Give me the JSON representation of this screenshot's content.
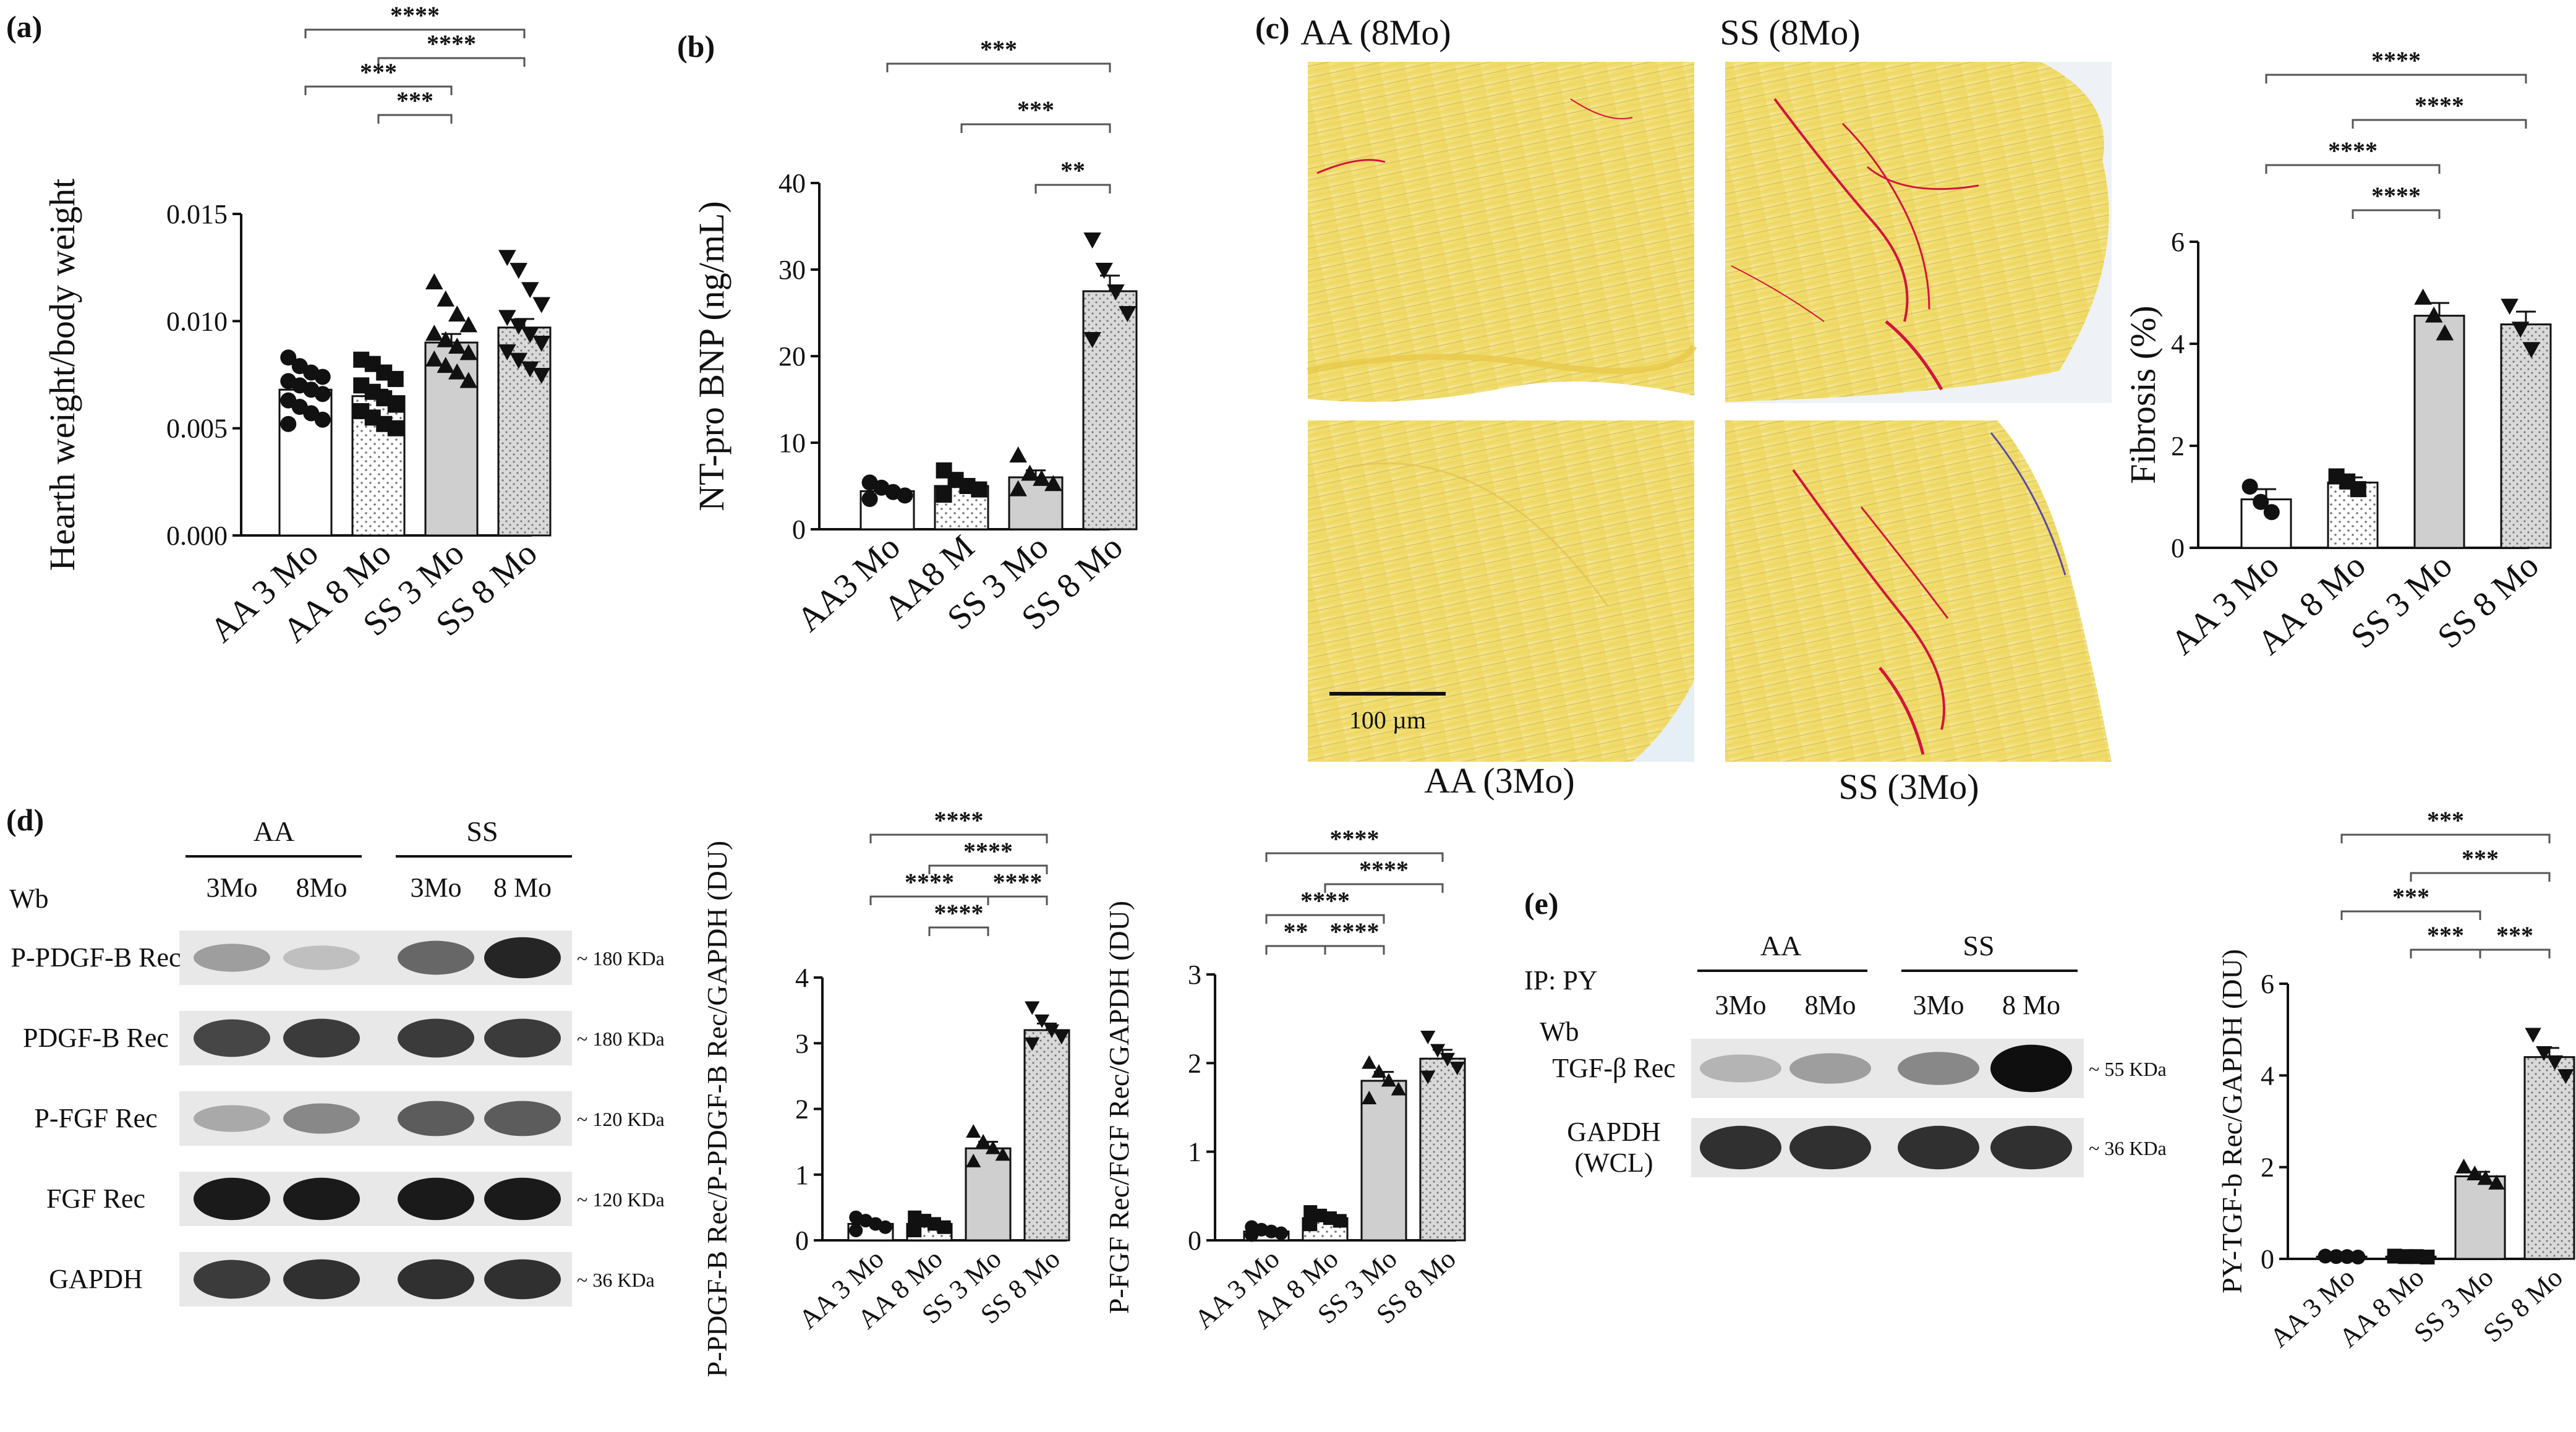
{
  "panels": {
    "a": {
      "letter": "(a)"
    },
    "b": {
      "letter": "(b)"
    },
    "c": {
      "letter": "(c)",
      "captions": {
        "top_left": "AA (8Mo)",
        "top_right": "SS  (8Mo)",
        "bottom_left": "AA (3Mo)",
        "bottom_right": "SS (3Mo)"
      },
      "scale_bar": "100 µm"
    },
    "d": {
      "letter": "(d)",
      "groups": [
        "AA",
        "SS"
      ],
      "wb_label": "Wb",
      "lanes": [
        "3Mo",
        "8Mo",
        "3Mo",
        "8 Mo"
      ],
      "blots": [
        {
          "label": "P-PDGF-B Rec",
          "kda": "~ 180 KDa"
        },
        {
          "label": "PDGF-B Rec",
          "kda": "~ 180 KDa"
        },
        {
          "label": "P-FGF Rec",
          "kda": "~ 120 KDa"
        },
        {
          "label": "FGF Rec",
          "kda": "~ 120 KDa"
        },
        {
          "label": "GAPDH",
          "kda": "~ 36 KDa"
        }
      ]
    },
    "e": {
      "letter": "(e)",
      "groups": [
        "AA",
        "SS"
      ],
      "ip_label": "IP: PY",
      "wb_label": "Wb",
      "lanes": [
        "3Mo",
        "8Mo",
        "3Mo",
        "8 Mo"
      ],
      "blots": [
        {
          "label": "TGF-β Rec",
          "kda": "~ 55 KDa"
        },
        {
          "label": "GAPDH\n(WCL)",
          "label_lines": [
            "GAPDH",
            "(WCL)"
          ],
          "kda": "~ 36 KDa"
        }
      ]
    }
  },
  "colors": {
    "white": "#ffffff",
    "dotted": "#f2f2f2",
    "gray": "#cfcfcf",
    "stippled": "#d9d9d9",
    "axis": "#111111",
    "histo_bg": "#f4e27a",
    "collagen": "#d4143c"
  },
  "chart_data": [
    {
      "id": "a",
      "type": "bar",
      "categories": [
        "AA 3 Mo",
        "AA 8 Mo",
        "SS 3 Mo",
        "SS 8 Mo"
      ],
      "values": [
        0.0068,
        0.0065,
        0.009,
        0.0097
      ],
      "errors": [
        0.0003,
        0.0003,
        0.0004,
        0.0004
      ],
      "markers": [
        "circle",
        "square",
        "triangle",
        "triangle-down"
      ],
      "points": [
        [
          0.0083,
          0.0079,
          0.0076,
          0.0074,
          0.0072,
          0.007,
          0.0068,
          0.0066,
          0.0063,
          0.006,
          0.0057,
          0.0054,
          0.0052
        ],
        [
          0.0082,
          0.008,
          0.0076,
          0.0073,
          0.007,
          0.0067,
          0.0064,
          0.0061,
          0.0058,
          0.0055,
          0.0052,
          0.005
        ],
        [
          0.0118,
          0.011,
          0.0103,
          0.0098,
          0.0094,
          0.0091,
          0.0088,
          0.0085,
          0.0082,
          0.0079,
          0.0076,
          0.0072
        ],
        [
          0.013,
          0.0124,
          0.0115,
          0.0108,
          0.0102,
          0.0098,
          0.0094,
          0.009,
          0.0086,
          0.0082,
          0.0078,
          0.0075
        ]
      ],
      "ylabel": "Hearth weight/body weight",
      "ylim": [
        0,
        0.015
      ],
      "yticks": [
        "0.000",
        "0.005",
        "0.010",
        "0.015"
      ],
      "ytick_values": [
        0,
        0.005,
        0.01,
        0.015
      ],
      "significance": [
        {
          "from": 0,
          "to": 3,
          "label": "****"
        },
        {
          "from": 1,
          "to": 3,
          "label": "****"
        },
        {
          "from": 0,
          "to": 2,
          "label": "***"
        },
        {
          "from": 1,
          "to": 2,
          "label": "***"
        }
      ]
    },
    {
      "id": "b",
      "type": "bar",
      "categories": [
        "AA3 Mo",
        "AA8 M",
        "SS 3 Mo",
        "SS 8 Mo"
      ],
      "values": [
        4.4,
        5.0,
        6.0,
        27.5
      ],
      "errors": [
        0.5,
        0.6,
        0.8,
        1.8
      ],
      "markers": [
        "circle",
        "square",
        "triangle",
        "triangle-down"
      ],
      "points": [
        [
          5.4,
          4.8,
          4.3,
          3.9,
          3.5
        ],
        [
          6.8,
          5.7,
          5.0,
          4.6,
          4.0
        ],
        [
          8.5,
          6.4,
          5.8,
          5.2,
          4.6
        ],
        [
          33.5,
          30.0,
          27.5,
          25.0,
          22.0
        ]
      ],
      "ylabel": "NT-pro BNP (ng/mL)",
      "ylim": [
        0,
        40
      ],
      "yticks": [
        "0",
        "10",
        "20",
        "30",
        "40"
      ],
      "ytick_values": [
        0,
        10,
        20,
        30,
        40
      ],
      "significance": [
        {
          "from": 0,
          "to": 3,
          "label": "***"
        },
        {
          "from": 1,
          "to": 3,
          "label": "***"
        },
        {
          "from": 2,
          "to": 3,
          "label": "**"
        }
      ]
    },
    {
      "id": "c",
      "type": "bar",
      "categories": [
        "AA 3 Mo",
        "AA 8 Mo",
        "SS 3 Mo",
        "SS 8 Mo"
      ],
      "values": [
        0.95,
        1.28,
        4.55,
        4.38
      ],
      "errors": [
        0.2,
        0.1,
        0.25,
        0.25
      ],
      "markers": [
        "circle",
        "square",
        "triangle",
        "triangle-down"
      ],
      "points": [
        [
          1.2,
          0.9,
          0.7
        ],
        [
          1.4,
          1.3,
          1.15
        ],
        [
          4.9,
          4.55,
          4.2
        ],
        [
          4.75,
          4.3,
          3.9
        ]
      ],
      "ylabel": "Fibrosis (%)",
      "ylim": [
        0,
        6
      ],
      "yticks": [
        "0",
        "2",
        "4",
        "6"
      ],
      "ytick_values": [
        0,
        2,
        4,
        6
      ],
      "significance": [
        {
          "from": 0,
          "to": 3,
          "label": "****"
        },
        {
          "from": 1,
          "to": 3,
          "label": "****"
        },
        {
          "from": 0,
          "to": 2,
          "label": "****"
        },
        {
          "from": 1,
          "to": 2,
          "label": "****"
        }
      ]
    },
    {
      "id": "d1",
      "type": "bar",
      "categories": [
        "AA 3 Mo",
        "AA 8 Mo",
        "SS 3 Mo",
        "SS 8 Mo"
      ],
      "values": [
        0.25,
        0.25,
        1.4,
        3.2
      ],
      "errors": [
        0.05,
        0.05,
        0.1,
        0.1
      ],
      "markers": [
        "circle",
        "square",
        "triangle",
        "triangle-down"
      ],
      "points": [
        [
          0.35,
          0.3,
          0.25,
          0.2,
          0.15
        ],
        [
          0.35,
          0.3,
          0.25,
          0.2,
          0.15
        ],
        [
          1.65,
          1.5,
          1.4,
          1.3,
          1.2
        ],
        [
          3.55,
          3.35,
          3.2,
          3.1,
          3.0
        ]
      ],
      "ylabel": "P-PDGF-B Rec/P-PDGF-B Rec/GAPDH (DU)",
      "ylim": [
        0,
        4
      ],
      "yticks": [
        "0",
        "1",
        "2",
        "3",
        "4"
      ],
      "ytick_values": [
        0,
        1,
        2,
        3,
        4
      ],
      "significance": [
        {
          "from": 0,
          "to": 3,
          "label": "****"
        },
        {
          "from": 1,
          "to": 3,
          "label": "****"
        },
        {
          "from": 0,
          "to": 2,
          "label": "****"
        },
        {
          "from": 2,
          "to": 3,
          "label": "****"
        },
        {
          "from": 1,
          "to": 2,
          "label": "****"
        }
      ]
    },
    {
      "id": "d2",
      "type": "bar",
      "categories": [
        "AA 3 Mo",
        "AA 8 Mo",
        "SS 3 Mo",
        "SS 8 Mo"
      ],
      "values": [
        0.1,
        0.25,
        1.8,
        2.05
      ],
      "errors": [
        0.03,
        0.04,
        0.1,
        0.1
      ],
      "markers": [
        "circle",
        "square",
        "triangle",
        "triangle-down"
      ],
      "points": [
        [
          0.15,
          0.12,
          0.1,
          0.08,
          0.06
        ],
        [
          0.32,
          0.28,
          0.25,
          0.22,
          0.18
        ],
        [
          2.0,
          1.9,
          1.8,
          1.7,
          1.6
        ],
        [
          2.3,
          2.15,
          2.05,
          1.95,
          1.85
        ]
      ],
      "ylabel": "P-FGF Rec/FGF Rec/GAPDH (DU)",
      "ylim": [
        0,
        3
      ],
      "yticks": [
        "0",
        "1",
        "2",
        "3"
      ],
      "ytick_values": [
        0,
        1,
        2,
        3
      ],
      "significance": [
        {
          "from": 0,
          "to": 3,
          "label": "****"
        },
        {
          "from": 1,
          "to": 3,
          "label": "****"
        },
        {
          "from": 0,
          "to": 2,
          "label": "****"
        },
        {
          "from": 0,
          "to": 1,
          "label": "**"
        },
        {
          "from": 1,
          "to": 2,
          "label": "****"
        }
      ]
    },
    {
      "id": "e",
      "type": "bar",
      "categories": [
        "AA 3 Mo",
        "AA 8 Mo",
        "SS 3 Mo",
        "SS 8 Mo"
      ],
      "values": [
        0.05,
        0.05,
        1.8,
        4.4
      ],
      "errors": [
        0.02,
        0.02,
        0.1,
        0.2
      ],
      "markers": [
        "circle",
        "square",
        "triangle",
        "triangle-down"
      ],
      "points": [
        [
          0.06,
          0.05,
          0.05,
          0.04
        ],
        [
          0.06,
          0.05,
          0.05,
          0.04
        ],
        [
          2.0,
          1.85,
          1.75,
          1.65
        ],
        [
          4.9,
          4.5,
          4.3,
          4.0
        ]
      ],
      "ylabel": "PY-TGF-b Rec/GAPDH (DU)",
      "ylim": [
        0,
        6
      ],
      "yticks": [
        "0",
        "2",
        "4",
        "6"
      ],
      "ytick_values": [
        0,
        2,
        4,
        6
      ],
      "significance": [
        {
          "from": 0,
          "to": 3,
          "label": "***"
        },
        {
          "from": 1,
          "to": 3,
          "label": "***"
        },
        {
          "from": 0,
          "to": 2,
          "label": "***"
        },
        {
          "from": 1,
          "to": 2,
          "label": "***"
        },
        {
          "from": 2,
          "to": 3,
          "label": "***"
        }
      ]
    }
  ]
}
